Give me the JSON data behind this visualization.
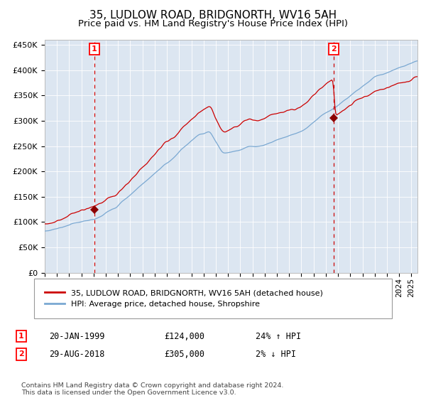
{
  "title1": "35, LUDLOW ROAD, BRIDGNORTH, WV16 5AH",
  "title2": "Price paid vs. HM Land Registry's House Price Index (HPI)",
  "ylim": [
    0,
    460000
  ],
  "yticks": [
    0,
    50000,
    100000,
    150000,
    200000,
    250000,
    300000,
    350000,
    400000,
    450000
  ],
  "background_color": "#dce6f1",
  "red_line_color": "#cc0000",
  "blue_line_color": "#7aa8d2",
  "marker_color": "#8b0000",
  "vline_color": "#cc0000",
  "sale1_date": 1999.055,
  "sale1_price": 124000,
  "sale1_label": "20-JAN-1999",
  "sale1_hpi": "24% ↑ HPI",
  "sale2_date": 2018.66,
  "sale2_price": 305000,
  "sale2_label": "29-AUG-2018",
  "sale2_hpi": "2% ↓ HPI",
  "legend_red": "35, LUDLOW ROAD, BRIDGNORTH, WV16 5AH (detached house)",
  "legend_blue": "HPI: Average price, detached house, Shropshire",
  "footnote": "Contains HM Land Registry data © Crown copyright and database right 2024.\nThis data is licensed under the Open Government Licence v3.0.",
  "title1_fontsize": 11,
  "title2_fontsize": 9.5,
  "tick_fontsize": 8,
  "xstart": 1995.0,
  "xend": 2025.5
}
